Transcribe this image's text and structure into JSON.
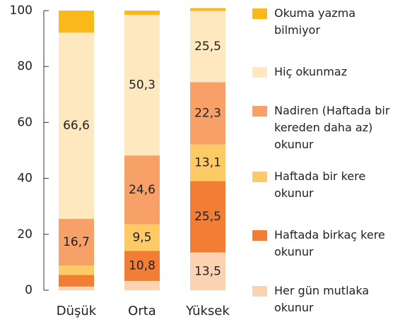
{
  "chart_data": {
    "type": "stacked_bar",
    "categories": [
      "Düşük",
      "Orta",
      "Yüksek"
    ],
    "ylim": [
      0,
      100
    ],
    "yticks": [
      0,
      20,
      40,
      60,
      80,
      100
    ],
    "series": [
      {
        "name": "Her gün mutlaka okunur",
        "color": "#fbd3b2",
        "values": [
          1.3,
          3.3,
          13.5
        ],
        "value_labels": [
          null,
          null,
          "13,5"
        ]
      },
      {
        "name": "Haftada birkaç kere okunur",
        "color": "#f27e36",
        "values": [
          4.2,
          10.8,
          25.5
        ],
        "value_labels": [
          null,
          "10,8",
          "25,5"
        ]
      },
      {
        "name": "Haftada bir kere okunur",
        "color": "#fdca66",
        "values": [
          3.3,
          9.5,
          13.1
        ],
        "value_labels": [
          null,
          "9,5",
          "13,1"
        ]
      },
      {
        "name": "Nadiren (Haftada bir kereden daha az) okunur",
        "color": "#f7a168",
        "values": [
          16.7,
          24.6,
          22.3
        ],
        "value_labels": [
          "16,7",
          "24,6",
          "22,3"
        ]
      },
      {
        "name": "Hiç okunmaz",
        "color": "#fde8c0",
        "values": [
          66.6,
          50.3,
          25.5
        ],
        "value_labels": [
          "66,6",
          "50,3",
          "25,5"
        ]
      },
      {
        "name": "Okuma yazma bilmiyor",
        "color": "#fbb81a",
        "values": [
          7.9,
          1.5,
          1.0
        ],
        "value_labels": [
          null,
          null,
          null
        ]
      }
    ]
  }
}
